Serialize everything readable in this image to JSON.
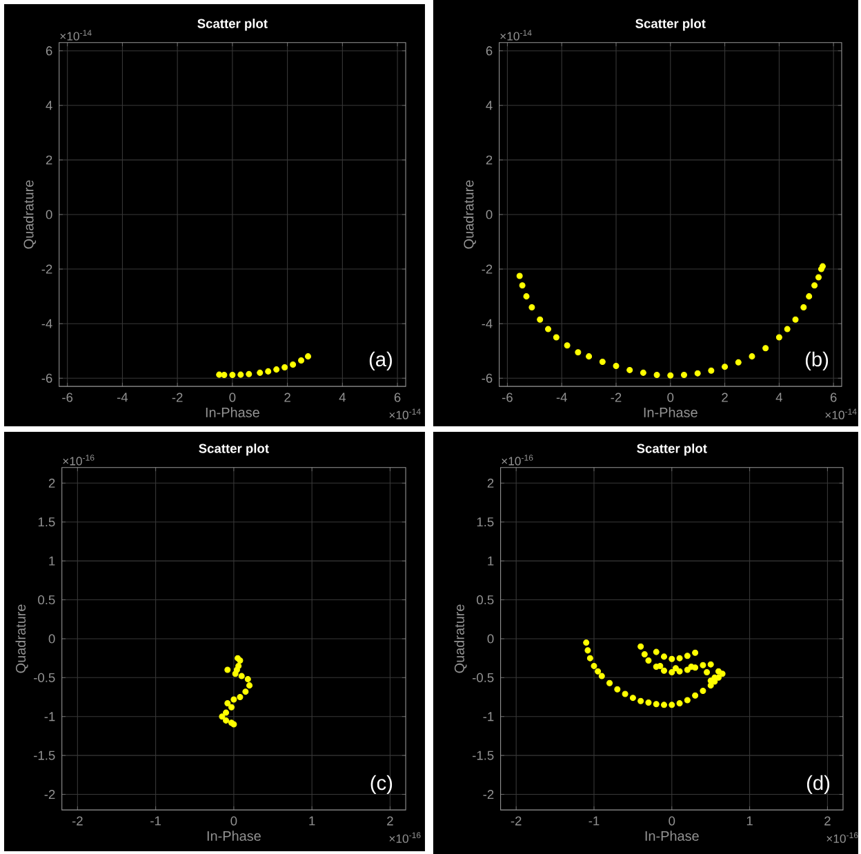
{
  "chart_data": [
    {
      "type": "scatter",
      "title": "Scatter plot",
      "xlabel": "In-Phase",
      "ylabel": "Quadrature",
      "color": "#ffff00",
      "marker": "circle",
      "grid": true,
      "x": [
        -0.48,
        -0.3,
        0,
        0.3,
        0.6,
        1,
        1.3,
        1.6,
        1.9,
        2.2,
        2.5,
        2.75
      ],
      "values": [
        -5.87,
        -5.88,
        -5.88,
        -5.87,
        -5.85,
        -5.8,
        -5.75,
        -5.68,
        -5.6,
        -5.5,
        -5.35,
        -5.2
      ],
      "xlim": [
        -6.3,
        6.3
      ],
      "ylim": [
        -6.3,
        6.3
      ],
      "xticks": [
        -6,
        -4,
        -2,
        0,
        2,
        4,
        6
      ],
      "yticks": [
        -6,
        -4,
        -2,
        0,
        2,
        4,
        6
      ],
      "annotations": [
        "×10$^{-14}$",
        "×10$^{-14}$",
        "(a)"
      ]
    },
    {
      "type": "scatter",
      "title": "Scatter plot",
      "xlabel": "In-Phase",
      "ylabel": "Quadrature",
      "color": "#ffff00",
      "marker": "circle",
      "grid": true,
      "x": [
        -5.55,
        -5.45,
        -5.3,
        -5.1,
        -4.8,
        -4.5,
        -4.2,
        -3.8,
        -3.4,
        -3,
        -2.5,
        -2,
        -1.5,
        -1,
        -0.5,
        0,
        0.5,
        1,
        1.5,
        2,
        2.5,
        3,
        3.5,
        4,
        4.3,
        4.6,
        4.9,
        5.1,
        5.3,
        5.45,
        5.55,
        5.6
      ],
      "values": [
        -2.25,
        -2.6,
        -3,
        -3.4,
        -3.85,
        -4.2,
        -4.5,
        -4.8,
        -5.05,
        -5.2,
        -5.4,
        -5.55,
        -5.7,
        -5.8,
        -5.88,
        -5.9,
        -5.88,
        -5.82,
        -5.72,
        -5.58,
        -5.42,
        -5.2,
        -4.9,
        -4.5,
        -4.2,
        -3.85,
        -3.4,
        -3,
        -2.6,
        -2.3,
        -2,
        -1.9
      ],
      "xlim": [
        -6.3,
        6.3
      ],
      "ylim": [
        -6.3,
        6.3
      ],
      "xticks": [
        -6,
        -4,
        -2,
        0,
        2,
        4,
        6
      ],
      "yticks": [
        -6,
        -4,
        -2,
        0,
        2,
        4,
        6
      ],
      "annotations": [
        "×10$^{-14}$",
        "×10$^{-14}$",
        "(b)"
      ]
    },
    {
      "type": "scatter",
      "title": "Scatter plot",
      "xlabel": "In-Phase",
      "ylabel": "Quadrature",
      "color": "#ffff00",
      "marker": "circle",
      "grid": true,
      "x": [
        0.05,
        0.08,
        0.06,
        0.04,
        -0.08,
        0.02,
        0.1,
        0.18,
        0.2,
        0.15,
        0.08,
        0,
        -0.08,
        -0.03,
        -0.1,
        -0.15,
        -0.1,
        -0.03,
        0
      ],
      "values": [
        -0.25,
        -0.28,
        -0.35,
        -0.4,
        -0.4,
        -0.45,
        -0.48,
        -0.52,
        -0.6,
        -0.68,
        -0.75,
        -0.78,
        -0.83,
        -0.88,
        -0.95,
        -1.0,
        -1.05,
        -1.08,
        -1.1
      ],
      "xlim": [
        -2.2,
        2.2
      ],
      "ylim": [
        -2.2,
        2.2
      ],
      "xticks": [
        -2,
        -1,
        0,
        1,
        2
      ],
      "yticks": [
        -2,
        -1.5,
        -1,
        -0.5,
        0,
        0.5,
        1,
        1.5,
        2
      ],
      "annotations": [
        "×10$^{-16}$",
        "×10$^{-16}$",
        "(c)"
      ]
    },
    {
      "type": "scatter",
      "title": "Scatter plot",
      "xlabel": "In-Phase",
      "ylabel": "Quadrature",
      "color": "#ffff00",
      "marker": "circle",
      "grid": true,
      "x": [
        -1.1,
        -1.08,
        -1.05,
        -1,
        -0.95,
        -0.9,
        -0.8,
        -0.7,
        -0.6,
        -0.5,
        -0.4,
        -0.3,
        -0.2,
        -0.1,
        0,
        0.1,
        0.2,
        0.3,
        0.4,
        0.5,
        0.55,
        0.6,
        0.65,
        -0.4,
        -0.35,
        -0.3,
        -0.2,
        -0.1,
        0,
        0.1,
        0.2,
        0.3,
        0.4,
        0.5,
        -0.2,
        -0.1,
        0,
        0.1,
        0.2,
        0.3,
        -0.15,
        0.05,
        0.25,
        0.45,
        0.55,
        0.5,
        0.6
      ],
      "values": [
        -0.05,
        -0.15,
        -0.25,
        -0.35,
        -0.42,
        -0.48,
        -0.57,
        -0.65,
        -0.71,
        -0.76,
        -0.8,
        -0.82,
        -0.84,
        -0.85,
        -0.85,
        -0.83,
        -0.79,
        -0.73,
        -0.67,
        -0.6,
        -0.55,
        -0.5,
        -0.45,
        -0.1,
        -0.2,
        -0.28,
        -0.36,
        -0.41,
        -0.43,
        -0.42,
        -0.4,
        -0.37,
        -0.34,
        -0.33,
        -0.17,
        -0.23,
        -0.26,
        -0.25,
        -0.22,
        -0.18,
        -0.35,
        -0.38,
        -0.36,
        -0.43,
        -0.5,
        -0.54,
        -0.42
      ],
      "xlim": [
        -2.2,
        2.2
      ],
      "ylim": [
        -2.2,
        2.2
      ],
      "xticks": [
        -2,
        -1,
        0,
        1,
        2
      ],
      "yticks": [
        -2,
        -1.5,
        -1,
        -0.5,
        0,
        0.5,
        1,
        1.5,
        2
      ],
      "annotations": [
        "×10$^{-16}$",
        "×10$^{-16}$",
        "(d)"
      ]
    }
  ]
}
